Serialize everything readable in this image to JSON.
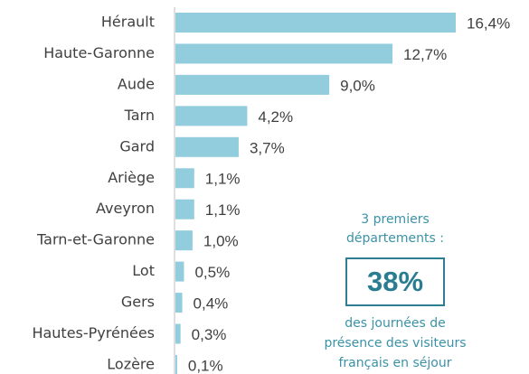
{
  "chart_data": {
    "type": "bar",
    "orientation": "horizontal",
    "categories": [
      "Hérault",
      "Haute-Garonne",
      "Aude",
      "Tarn",
      "Gard",
      "Ariège",
      "Aveyron",
      "Tarn-et-Garonne",
      "Lot",
      "Gers",
      "Hautes-Pyrénées",
      "Lozère"
    ],
    "values": [
      16.4,
      12.7,
      9.0,
      4.2,
      3.7,
      1.1,
      1.1,
      1.0,
      0.5,
      0.4,
      0.3,
      0.1
    ],
    "value_labels": [
      "16,4%",
      "12,7%",
      "9,0%",
      "4,2%",
      "3,7%",
      "1,1%",
      "1,1%",
      "1,0%",
      "0,5%",
      "0,4%",
      "0,3%",
      "0,1%"
    ],
    "color": "#92cddd",
    "annotation": {
      "top_lines": [
        "3 premiers",
        "départements :"
      ],
      "highlight": "38%",
      "bottom_lines": [
        "des journées de",
        "présence des visiteurs",
        "français en séjour"
      ]
    }
  }
}
